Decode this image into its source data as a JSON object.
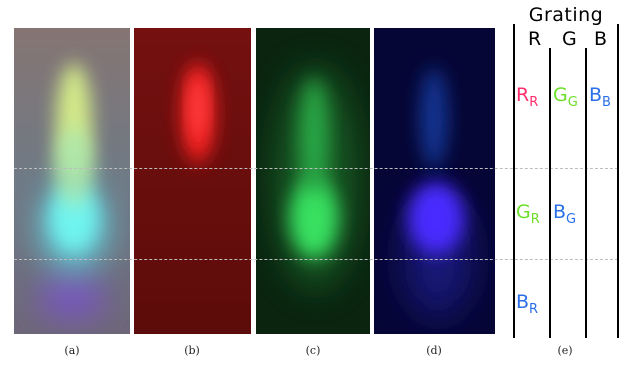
{
  "panels": {
    "a_caption": "(a)",
    "b_caption": "(b)",
    "c_caption": "(c)",
    "d_caption": "(d)",
    "e_caption": "(e)"
  },
  "grating": {
    "title": "Grating",
    "columns": [
      "R",
      "G",
      "B"
    ],
    "labels": [
      {
        "base": "R",
        "sub": "R",
        "color": "#ff2f6e"
      },
      {
        "base": "G",
        "sub": "G",
        "color": "#6ddf2a"
      },
      {
        "base": "B",
        "sub": "B",
        "color": "#2a6fe8"
      },
      {
        "base": "G",
        "sub": "R",
        "color": "#6ddf2a"
      },
      {
        "base": "B",
        "sub": "G",
        "color": "#2a6fe8"
      },
      {
        "base": "B",
        "sub": "R",
        "color": "#2a6fe8"
      }
    ]
  },
  "colors": {
    "panel_a_bg": "#7d7370",
    "panel_b_bg": "#6a0d0a",
    "panel_c_bg": "#0a2a12",
    "panel_d_bg": "#05053a"
  }
}
